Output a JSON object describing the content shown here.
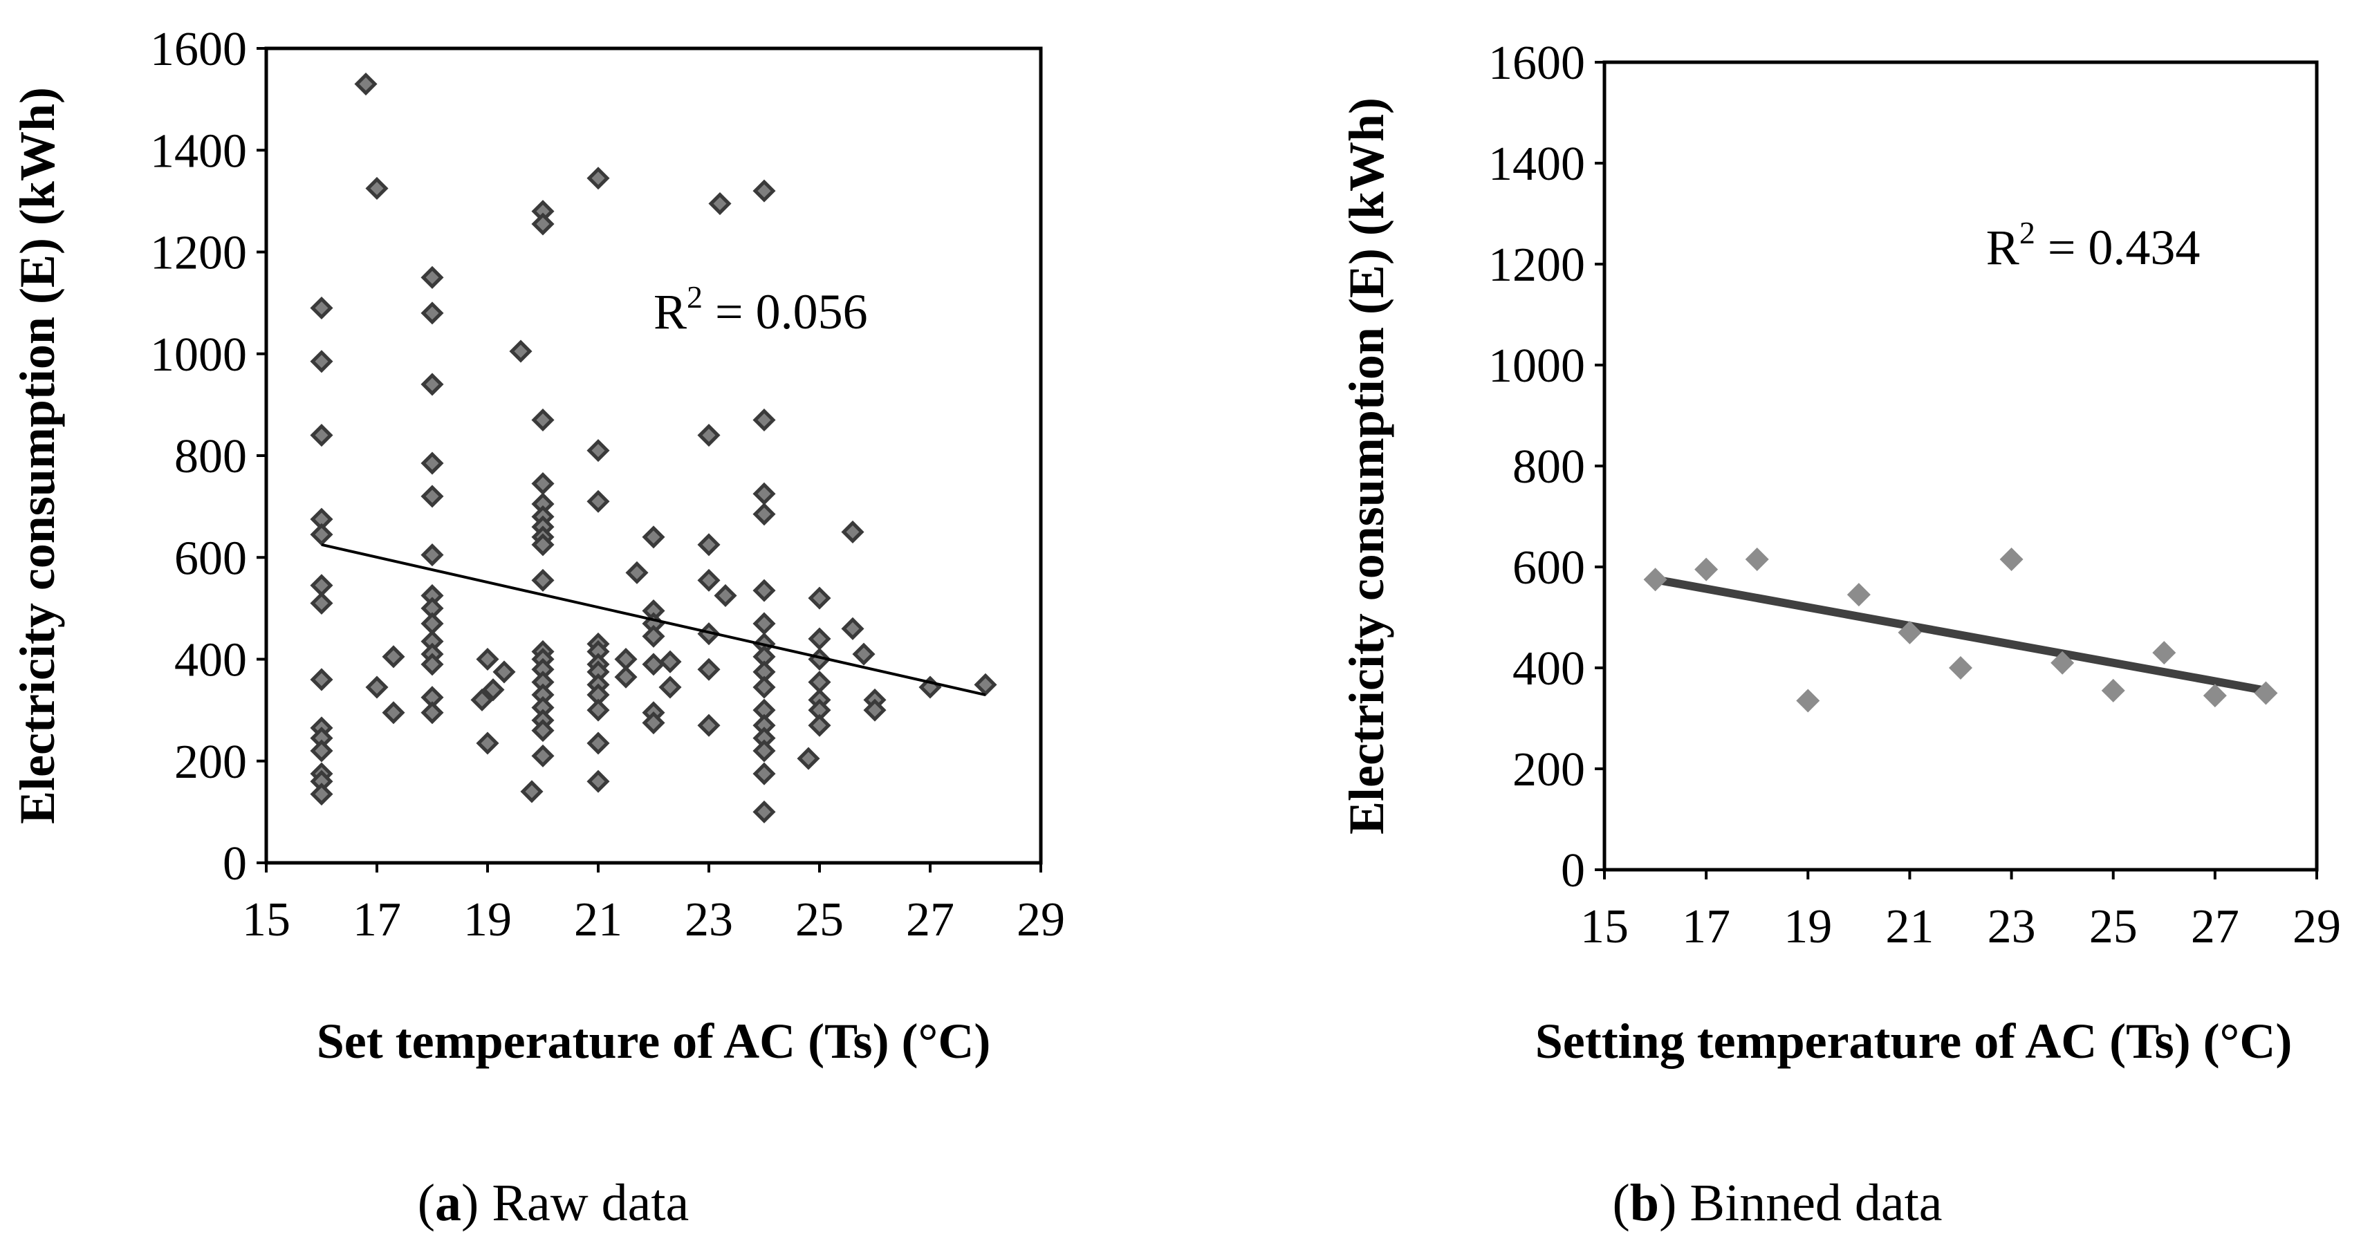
{
  "chart_data": [
    {
      "type": "scatter",
      "panel": "a",
      "caption_letter": "a",
      "caption_text": ") Raw data",
      "caption_open": "(",
      "xlabel": "Set temperature of AC (Ts) (°C)",
      "ylabel": "Electricity consumption (E) (kWh)",
      "xlim": [
        15,
        29
      ],
      "ylim": [
        0,
        1600
      ],
      "xticks": [
        15,
        17,
        19,
        21,
        23,
        25,
        27,
        29
      ],
      "yticks": [
        0,
        200,
        400,
        600,
        800,
        1000,
        1200,
        1400,
        1600
      ],
      "annotation": {
        "label": "R",
        "sup": "2",
        "rest": " = 0.056",
        "x": 22.0,
        "y": 1050
      },
      "trendline": {
        "x": [
          16,
          28
        ],
        "y": [
          625,
          330
        ]
      },
      "marker_color": "#7f7f7f",
      "points": [
        [
          16.8,
          1530
        ],
        [
          17,
          1325
        ],
        [
          16,
          1090
        ],
        [
          16,
          985
        ],
        [
          16,
          840
        ],
        [
          16,
          675
        ],
        [
          16,
          645
        ],
        [
          16,
          545
        ],
        [
          16,
          510
        ],
        [
          16,
          360
        ],
        [
          16,
          265
        ],
        [
          16,
          245
        ],
        [
          16,
          220
        ],
        [
          16,
          175
        ],
        [
          16,
          160
        ],
        [
          16,
          135
        ],
        [
          17,
          345
        ],
        [
          17.3,
          405
        ],
        [
          17.3,
          295
        ],
        [
          18,
          1150
        ],
        [
          18,
          1080
        ],
        [
          18,
          940
        ],
        [
          18,
          785
        ],
        [
          18,
          720
        ],
        [
          18,
          605
        ],
        [
          18,
          525
        ],
        [
          18,
          500
        ],
        [
          18,
          470
        ],
        [
          18,
          435
        ],
        [
          18,
          410
        ],
        [
          18,
          390
        ],
        [
          18,
          325
        ],
        [
          18,
          295
        ],
        [
          18.9,
          320
        ],
        [
          19,
          400
        ],
        [
          19.1,
          340
        ],
        [
          19,
          235
        ],
        [
          19.3,
          375
        ],
        [
          19.6,
          1005
        ],
        [
          19.8,
          140
        ],
        [
          20,
          1280
        ],
        [
          20,
          1255
        ],
        [
          20,
          870
        ],
        [
          20,
          745
        ],
        [
          20,
          705
        ],
        [
          20,
          680
        ],
        [
          20,
          660
        ],
        [
          20,
          640
        ],
        [
          20,
          625
        ],
        [
          20,
          555
        ],
        [
          20,
          415
        ],
        [
          20,
          400
        ],
        [
          20,
          380
        ],
        [
          20,
          355
        ],
        [
          20,
          330
        ],
        [
          20,
          305
        ],
        [
          20,
          280
        ],
        [
          20,
          260
        ],
        [
          20,
          210
        ],
        [
          21,
          1345
        ],
        [
          21,
          810
        ],
        [
          21,
          710
        ],
        [
          21,
          430
        ],
        [
          21,
          415
        ],
        [
          21,
          390
        ],
        [
          21,
          375
        ],
        [
          21,
          350
        ],
        [
          21,
          330
        ],
        [
          21,
          300
        ],
        [
          21,
          235
        ],
        [
          21,
          160
        ],
        [
          21.5,
          400
        ],
        [
          21.5,
          365
        ],
        [
          21.7,
          570
        ],
        [
          22,
          640
        ],
        [
          22,
          495
        ],
        [
          22,
          470
        ],
        [
          22,
          445
        ],
        [
          22,
          390
        ],
        [
          22,
          295
        ],
        [
          22,
          275
        ],
        [
          22.3,
          395
        ],
        [
          22.3,
          345
        ],
        [
          23,
          840
        ],
        [
          23,
          625
        ],
        [
          23,
          555
        ],
        [
          23,
          450
        ],
        [
          23,
          380
        ],
        [
          23,
          270
        ],
        [
          23.2,
          1295
        ],
        [
          23.3,
          525
        ],
        [
          24,
          1320
        ],
        [
          24,
          870
        ],
        [
          24,
          725
        ],
        [
          24,
          685
        ],
        [
          24,
          535
        ],
        [
          24,
          470
        ],
        [
          24,
          430
        ],
        [
          24,
          405
        ],
        [
          24,
          375
        ],
        [
          24,
          345
        ],
        [
          24,
          300
        ],
        [
          24,
          270
        ],
        [
          24,
          245
        ],
        [
          24,
          220
        ],
        [
          24,
          175
        ],
        [
          24,
          100
        ],
        [
          24.8,
          205
        ],
        [
          25,
          520
        ],
        [
          25,
          440
        ],
        [
          25,
          400
        ],
        [
          25,
          355
        ],
        [
          25,
          320
        ],
        [
          25,
          300
        ],
        [
          25,
          270
        ],
        [
          25.6,
          460
        ],
        [
          25.6,
          650
        ],
        [
          25.8,
          410
        ],
        [
          26,
          320
        ],
        [
          26,
          300
        ],
        [
          27,
          345
        ],
        [
          28,
          350
        ]
      ]
    },
    {
      "type": "scatter",
      "panel": "b",
      "caption_letter": "b",
      "caption_text": ") Binned data",
      "caption_open": "(",
      "xlabel": "Setting temperature of AC (Ts) (°C)",
      "ylabel": "Electricity consumption (E) (kWh)",
      "xlim": [
        15,
        29
      ],
      "ylim": [
        0,
        1600
      ],
      "xticks": [
        15,
        17,
        19,
        21,
        23,
        25,
        27,
        29
      ],
      "yticks": [
        0,
        200,
        400,
        600,
        800,
        1000,
        1200,
        1400,
        1600
      ],
      "annotation": {
        "label": "R",
        "sup": "2",
        "rest": " = 0.434",
        "x": 22.5,
        "y": 1200
      },
      "trendline": {
        "x": [
          16,
          28
        ],
        "y": [
          575,
          355
        ]
      },
      "marker_color": "#8c8c8c",
      "points": [
        [
          16,
          575
        ],
        [
          17,
          595
        ],
        [
          18,
          615
        ],
        [
          19,
          335
        ],
        [
          20,
          545
        ],
        [
          21,
          470
        ],
        [
          22,
          400
        ],
        [
          23,
          615
        ],
        [
          24,
          410
        ],
        [
          25,
          355
        ],
        [
          26,
          430
        ],
        [
          27,
          345
        ],
        [
          28,
          350
        ]
      ]
    }
  ]
}
